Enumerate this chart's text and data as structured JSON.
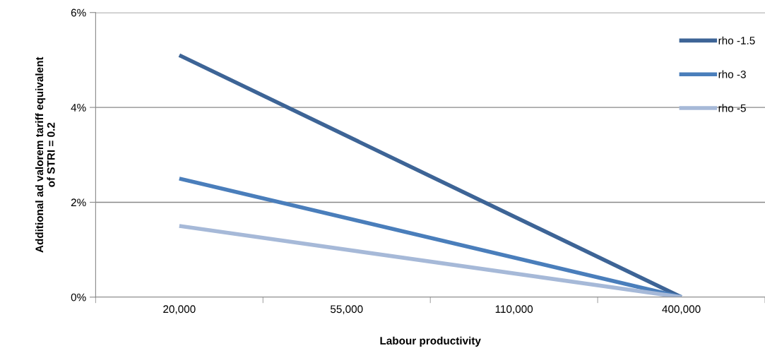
{
  "chart_data": {
    "type": "line",
    "xlabel": "Labour productivity",
    "ylabel": "Additional ad valorem tariff equivalent\nof STRI = 0.2",
    "categories": [
      "20,000",
      "55,000",
      "110,000",
      "400,000"
    ],
    "series": [
      {
        "name": "rho -1.5",
        "color": "#3d6496",
        "values": [
          5.1,
          null,
          null,
          0
        ]
      },
      {
        "name": "rho -3",
        "color": "#4a7ebb",
        "values": [
          2.5,
          null,
          null,
          0
        ]
      },
      {
        "name": "rho -5",
        "color": "#a6b9d8",
        "values": [
          1.5,
          null,
          null,
          0
        ]
      }
    ],
    "ylim": [
      0,
      6
    ],
    "yticks": [
      {
        "value": 0,
        "label": "0%"
      },
      {
        "value": 2,
        "label": "2%"
      },
      {
        "value": 4,
        "label": "4%"
      },
      {
        "value": 6,
        "label": "6%"
      }
    ],
    "grid": "y",
    "legend": "top right",
    "marker": "none",
    "line_style": "solid"
  }
}
